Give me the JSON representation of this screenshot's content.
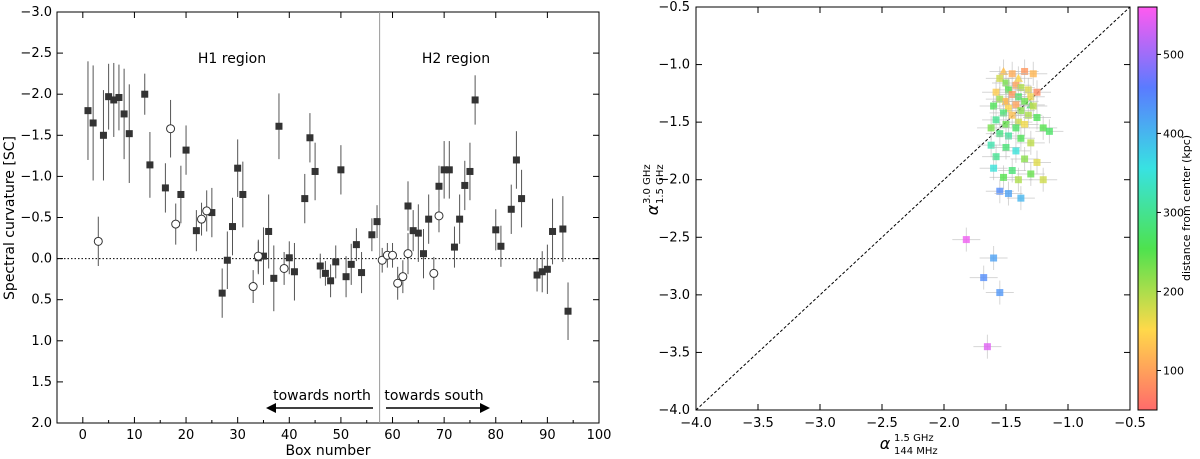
{
  "chart_data": [
    {
      "type": "scatter",
      "xlabel": "Box number",
      "ylabel": "Spectral curvature [SC]",
      "xlim": [
        -5,
        100
      ],
      "ylim": [
        2.0,
        -3.0
      ],
      "y_inverted": true,
      "xticks": [
        0,
        10,
        20,
        30,
        40,
        50,
        60,
        70,
        80,
        90,
        100
      ],
      "yticks": [
        -3.0,
        -2.5,
        -2.0,
        -1.5,
        -1.0,
        -0.5,
        0.0,
        0.5,
        1.0,
        1.5,
        2.0
      ],
      "tick_labels_x": [
        "0",
        "10",
        "20",
        "30",
        "40",
        "50",
        "60",
        "70",
        "80",
        "90",
        "100"
      ],
      "tick_labels_y": [
        "−3.0",
        "−2.5",
        "−2.0",
        "−1.5",
        "−1.0",
        "−0.5",
        "0.0",
        "0.5",
        "1.0",
        "1.5",
        "2.0"
      ],
      "reference_line_y": 0.0,
      "divider_x": 57.5,
      "annotations": {
        "h1": "H1 region",
        "h2": "H2 region",
        "north": "towards north",
        "south": "towards south"
      },
      "series": [
        {
          "marker": "filled-square",
          "points": [
            [
              1,
              -1.8,
              0.6
            ],
            [
              2,
              -1.65,
              0.7
            ],
            [
              4,
              -1.5,
              0.55
            ],
            [
              5,
              -1.97,
              0.4
            ],
            [
              6,
              -1.93,
              0.45
            ],
            [
              7,
              -1.96,
              0.4
            ],
            [
              8,
              -1.76,
              0.55
            ],
            [
              9,
              -1.52,
              0.6
            ],
            [
              12,
              -2.0,
              0.25
            ],
            [
              13,
              -1.14,
              0.4
            ],
            [
              16,
              -0.86,
              0.3
            ],
            [
              19,
              -0.78,
              0.35
            ],
            [
              20,
              -1.32,
              0.3
            ],
            [
              22,
              -0.34,
              0.25
            ],
            [
              25,
              -0.56,
              0.3
            ],
            [
              27,
              0.42,
              0.3
            ],
            [
              28,
              0.02,
              0.35
            ],
            [
              29,
              -0.39,
              0.35
            ],
            [
              30,
              -1.1,
              0.35
            ],
            [
              31,
              -0.78,
              0.4
            ],
            [
              34,
              -0.01,
              0.2
            ],
            [
              35,
              -0.03,
              0.35
            ],
            [
              36,
              -0.33,
              0.45
            ],
            [
              37,
              0.24,
              0.4
            ],
            [
              38,
              -1.61,
              0.4
            ],
            [
              40,
              -0.01,
              0.2
            ],
            [
              41,
              0.16,
              0.35
            ],
            [
              43,
              -0.73,
              0.3
            ],
            [
              44,
              -1.47,
              0.3
            ],
            [
              45,
              -1.06,
              0.35
            ],
            [
              46,
              0.09,
              0.15
            ],
            [
              47,
              0.18,
              0.15
            ],
            [
              48,
              0.27,
              0.2
            ],
            [
              49,
              0.04,
              0.2
            ],
            [
              50,
              -1.08,
              0.3
            ],
            [
              51,
              0.22,
              0.25
            ],
            [
              52,
              0.07,
              0.25
            ],
            [
              53,
              -0.17,
              0.2
            ],
            [
              54,
              0.17,
              0.25
            ],
            [
              56,
              -0.29,
              0.2
            ],
            [
              57,
              -0.45,
              0.2
            ],
            [
              63,
              -0.64,
              0.3
            ],
            [
              64,
              -0.34,
              0.25
            ],
            [
              65,
              -0.31,
              0.35
            ],
            [
              66,
              -0.06,
              0.3
            ],
            [
              67,
              -0.48,
              0.3
            ],
            [
              69,
              -0.88,
              0.25
            ],
            [
              70,
              -1.08,
              0.35
            ],
            [
              71,
              -1.08,
              0.35
            ],
            [
              72,
              -0.14,
              0.25
            ],
            [
              73,
              -0.48,
              0.3
            ],
            [
              74,
              -0.89,
              0.3
            ],
            [
              75,
              -1.06,
              0.35
            ],
            [
              76,
              -1.93,
              0.3
            ],
            [
              80,
              -0.35,
              0.25
            ],
            [
              81,
              -0.15,
              0.25
            ],
            [
              83,
              -0.6,
              0.3
            ],
            [
              84,
              -1.2,
              0.35
            ],
            [
              85,
              -0.73,
              0.35
            ],
            [
              88,
              0.2,
              0.2
            ],
            [
              89,
              0.16,
              0.25
            ],
            [
              90,
              0.13,
              0.3
            ],
            [
              91,
              -0.33,
              0.4
            ],
            [
              93,
              -0.36,
              0.4
            ],
            [
              94,
              0.64,
              0.35
            ]
          ]
        },
        {
          "marker": "open-circle",
          "points": [
            [
              3,
              -0.21,
              0.3
            ],
            [
              17,
              -1.58,
              0.35
            ],
            [
              18,
              -0.42,
              0.25
            ],
            [
              23,
              -0.48,
              0.2
            ],
            [
              24,
              -0.58,
              0.25
            ],
            [
              33,
              0.34,
              0.2
            ],
            [
              34,
              -0.03,
              0.2
            ],
            [
              39,
              0.12,
              0.2
            ],
            [
              58,
              0.02,
              0.15
            ],
            [
              59,
              -0.04,
              0.15
            ],
            [
              60,
              -0.04,
              0.15
            ],
            [
              61,
              0.3,
              0.2
            ],
            [
              62,
              0.22,
              0.2
            ],
            [
              63,
              -0.06,
              0.25
            ],
            [
              68,
              0.18,
              0.2
            ],
            [
              69,
              -0.52,
              0.2
            ]
          ]
        }
      ]
    },
    {
      "type": "scatter",
      "xlabel": "α",
      "xlabel_sup": "1.5 GHz",
      "xlabel_sub": "144 MHz",
      "ylabel": "α",
      "ylabel_sup": "3.0 GHz",
      "ylabel_sub": "1.5 GHz",
      "xlim": [
        -4.0,
        -0.5
      ],
      "ylim": [
        -4.0,
        -0.5
      ],
      "xticks": [
        -4.0,
        -3.5,
        -3.0,
        -2.5,
        -2.0,
        -1.5,
        -1.0,
        -0.5
      ],
      "yticks": [
        -4.0,
        -3.5,
        -3.0,
        -2.5,
        -2.0,
        -1.5,
        -1.0,
        -0.5
      ],
      "tick_labels_x": [
        "−4.0",
        "−3.5",
        "−3.0",
        "−2.5",
        "−2.0",
        "−1.5",
        "−1.0",
        "−0.5"
      ],
      "tick_labels_y": [
        "−4.0",
        "−3.5",
        "−3.0",
        "−2.5",
        "−2.0",
        "−1.5",
        "−1.0",
        "−0.5"
      ],
      "reference_line": "y = x",
      "colorbar": {
        "label": "distance from center (kpc)",
        "range": [
          50,
          560
        ],
        "ticks": [
          100,
          200,
          300,
          400,
          500
        ],
        "tick_labels": [
          "100",
          "200",
          "300",
          "400",
          "500"
        ],
        "colormap": [
          "#ff6b6b",
          "#ffd94a",
          "#4ee24e",
          "#38e2e2",
          "#5a7bff",
          "#ff5af0"
        ]
      },
      "points": [
        [
          -1.52,
          -1.06,
          130,
          "t"
        ],
        [
          -1.4,
          -1.12,
          150,
          "t"
        ],
        [
          -1.3,
          -1.35,
          280,
          "t"
        ],
        [
          -1.5,
          -1.32,
          140,
          "t"
        ],
        [
          -1.35,
          -1.06,
          90,
          "s"
        ],
        [
          -1.45,
          -1.08,
          110,
          "s"
        ],
        [
          -1.28,
          -1.08,
          120,
          "s"
        ],
        [
          -1.55,
          -1.12,
          180,
          "s"
        ],
        [
          -1.5,
          -1.16,
          230,
          "s"
        ],
        [
          -1.42,
          -1.18,
          100,
          "s"
        ],
        [
          -1.38,
          -1.2,
          200,
          "s"
        ],
        [
          -1.32,
          -1.22,
          170,
          "s"
        ],
        [
          -1.48,
          -1.22,
          250,
          "s"
        ],
        [
          -1.25,
          -1.24,
          80,
          "s"
        ],
        [
          -1.58,
          -1.24,
          140,
          "s"
        ],
        [
          -1.45,
          -1.26,
          90,
          "s"
        ],
        [
          -1.4,
          -1.28,
          270,
          "s"
        ],
        [
          -1.3,
          -1.28,
          160,
          "s"
        ],
        [
          -1.55,
          -1.3,
          210,
          "s"
        ],
        [
          -1.5,
          -1.32,
          120,
          "s"
        ],
        [
          -1.35,
          -1.32,
          240,
          "s"
        ],
        [
          -1.42,
          -1.35,
          100,
          "s"
        ],
        [
          -1.28,
          -1.36,
          190,
          "s"
        ],
        [
          -1.6,
          -1.36,
          260,
          "s"
        ],
        [
          -1.48,
          -1.38,
          150,
          "s"
        ],
        [
          -1.38,
          -1.4,
          220,
          "s"
        ],
        [
          -1.52,
          -1.42,
          280,
          "s"
        ],
        [
          -1.45,
          -1.44,
          130,
          "s"
        ],
        [
          -1.32,
          -1.44,
          200,
          "s"
        ],
        [
          -1.25,
          -1.46,
          260,
          "s"
        ],
        [
          -1.58,
          -1.48,
          300,
          "s"
        ],
        [
          -1.4,
          -1.5,
          180,
          "s"
        ],
        [
          -1.5,
          -1.52,
          240,
          "s"
        ],
        [
          -1.35,
          -1.52,
          160,
          "s"
        ],
        [
          -1.42,
          -1.55,
          270,
          "s"
        ],
        [
          -1.62,
          -1.55,
          230,
          "s"
        ],
        [
          -1.2,
          -1.55,
          250,
          "s"
        ],
        [
          -1.15,
          -1.58,
          270,
          "s"
        ],
        [
          -1.55,
          -1.6,
          290,
          "s"
        ],
        [
          -1.48,
          -1.62,
          310,
          "s"
        ],
        [
          -1.38,
          -1.64,
          260,
          "s"
        ],
        [
          -1.3,
          -1.68,
          190,
          "s"
        ],
        [
          -1.62,
          -1.7,
          320,
          "s"
        ],
        [
          -1.5,
          -1.72,
          280,
          "s"
        ],
        [
          -1.42,
          -1.75,
          350,
          "s"
        ],
        [
          -1.58,
          -1.8,
          300,
          "s"
        ],
        [
          -1.35,
          -1.82,
          220,
          "s"
        ],
        [
          -1.25,
          -1.85,
          170,
          "s"
        ],
        [
          -1.6,
          -1.9,
          350,
          "s"
        ],
        [
          -1.45,
          -1.92,
          280,
          "s"
        ],
        [
          -1.3,
          -1.95,
          240,
          "s"
        ],
        [
          -1.52,
          -1.98,
          250,
          "s"
        ],
        [
          -1.4,
          -2.0,
          200,
          "s"
        ],
        [
          -1.2,
          -2.0,
          180,
          "s"
        ],
        [
          -1.55,
          -2.1,
          440,
          "s"
        ],
        [
          -1.48,
          -2.12,
          420,
          "s"
        ],
        [
          -1.38,
          -2.16,
          400,
          "s"
        ],
        [
          -1.82,
          -2.52,
          550,
          "s"
        ],
        [
          -1.6,
          -2.68,
          420,
          "s"
        ],
        [
          -1.68,
          -2.85,
          440,
          "s"
        ],
        [
          -1.55,
          -2.98,
          430,
          "s"
        ],
        [
          -1.65,
          -3.45,
          540,
          "s"
        ]
      ]
    }
  ]
}
